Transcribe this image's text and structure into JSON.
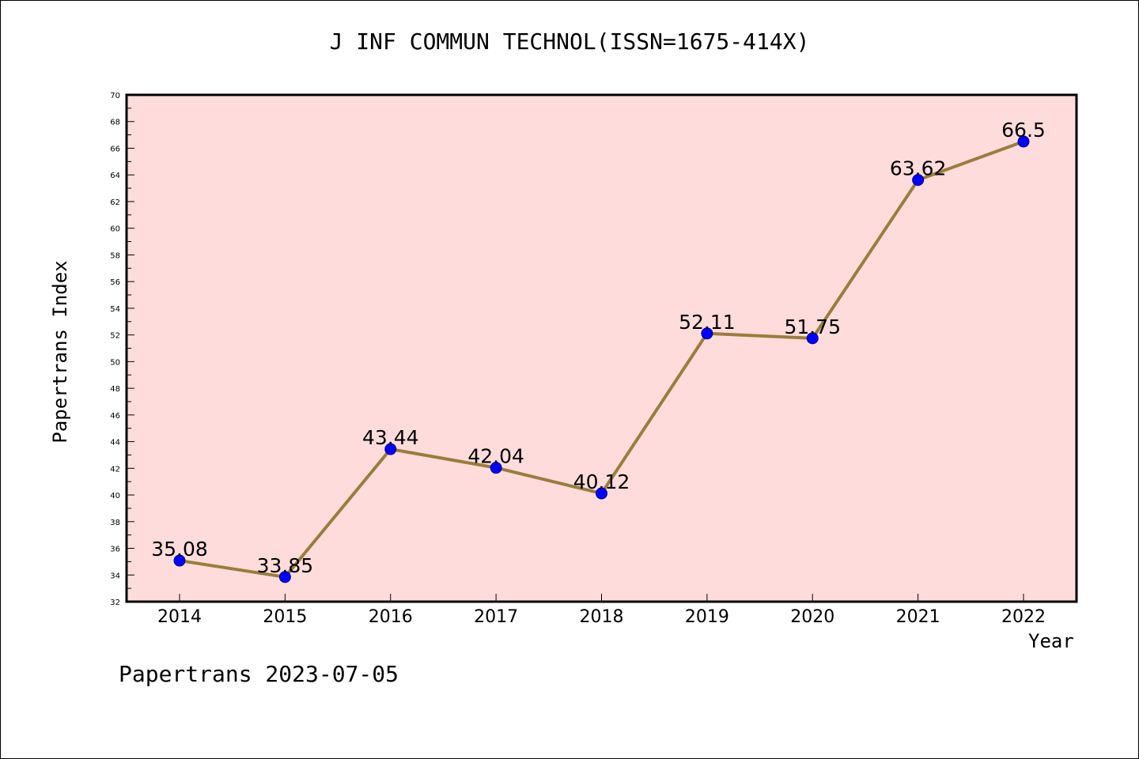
{
  "chart_data": {
    "type": "line",
    "title": "J INF COMMUN TECHNOL(ISSN=1675-414X)",
    "xlabel": "Year",
    "ylabel": "Papertrans Index",
    "categories": [
      "2014",
      "2015",
      "2016",
      "2017",
      "2018",
      "2019",
      "2020",
      "2021",
      "2022"
    ],
    "series": [
      {
        "values": [
          35.08,
          33.85,
          43.44,
          42.04,
          40.12,
          52.11,
          51.75,
          63.62,
          66.5
        ],
        "labels": [
          "35.08",
          "33.85",
          "43.44",
          "42.04",
          "40.12",
          "52.11",
          "51.75",
          "63.62",
          "66.5"
        ]
      }
    ],
    "ylim": [
      32,
      70
    ],
    "yticks": [
      "32",
      "34",
      "36",
      "38",
      "40",
      "42",
      "44",
      "46",
      "48",
      "50",
      "52",
      "54",
      "56",
      "58",
      "60",
      "62",
      "64",
      "66",
      "68",
      "70"
    ],
    "grid": false,
    "legend": "none",
    "colors": {
      "plot_background": "#FFDCDC",
      "line": "#9A7D3A",
      "marker": "#0000FF"
    }
  },
  "footer": "Papertrans 2023-07-05"
}
